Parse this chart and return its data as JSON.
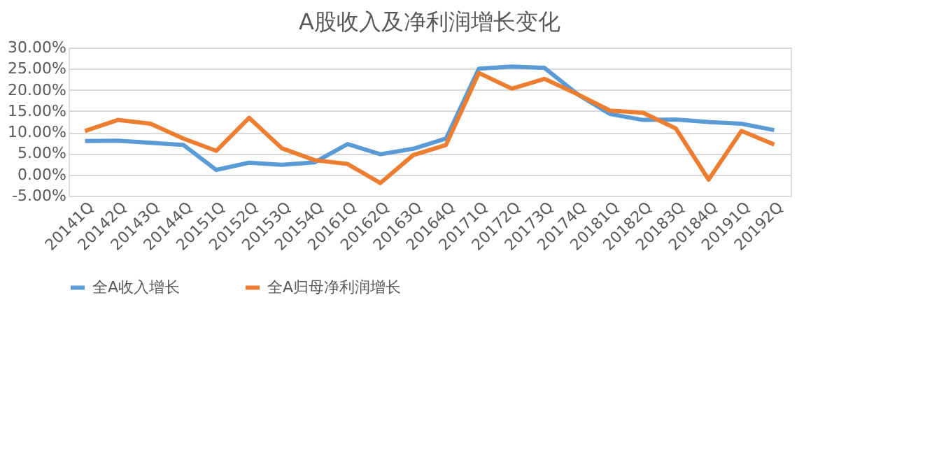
{
  "chart_data": {
    "type": "line",
    "title": "A股收入及净利润增长变化",
    "categories": [
      "20141Q",
      "20142Q",
      "20143Q",
      "20144Q",
      "20151Q",
      "20152Q",
      "20153Q",
      "20154Q",
      "20161Q",
      "20162Q",
      "20163Q",
      "20164Q",
      "20171Q",
      "20172Q",
      "20173Q",
      "20174Q",
      "20181Q",
      "20182Q",
      "20183Q",
      "20184Q",
      "20191Q",
      "20192Q"
    ],
    "series": [
      {
        "name": "全A收入增长",
        "color": "#5b9bd5",
        "values": [
          7.9,
          8.0,
          7.5,
          7.0,
          1.1,
          2.8,
          2.3,
          2.9,
          7.2,
          4.8,
          6.1,
          8.5,
          25.0,
          25.5,
          25.2,
          19.0,
          14.3,
          12.9,
          13.0,
          12.4,
          12.0,
          10.5
        ]
      },
      {
        "name": "全A归母净利润增长",
        "color": "#ed7d31",
        "values": [
          10.3,
          12.9,
          12.0,
          8.5,
          5.6,
          13.4,
          6.2,
          3.4,
          2.5,
          -2.0,
          4.6,
          7.0,
          24.0,
          20.3,
          22.6,
          19.0,
          15.1,
          14.6,
          10.9,
          -1.2,
          10.3,
          7.1
        ]
      }
    ],
    "ylim": [
      -5,
      30
    ],
    "yticks": [
      {
        "value": -5,
        "label": "-5.00%"
      },
      {
        "value": 0,
        "label": "0.00%"
      },
      {
        "value": 5,
        "label": "5.00%"
      },
      {
        "value": 10,
        "label": "10.00%"
      },
      {
        "value": 15,
        "label": "15.00%"
      },
      {
        "value": 20,
        "label": "20.00%"
      },
      {
        "value": 25,
        "label": "25.00%"
      },
      {
        "value": 30,
        "label": "30.00%"
      }
    ],
    "grid": "y",
    "legend": "bottom",
    "marker": "none",
    "line_style": "solid"
  }
}
